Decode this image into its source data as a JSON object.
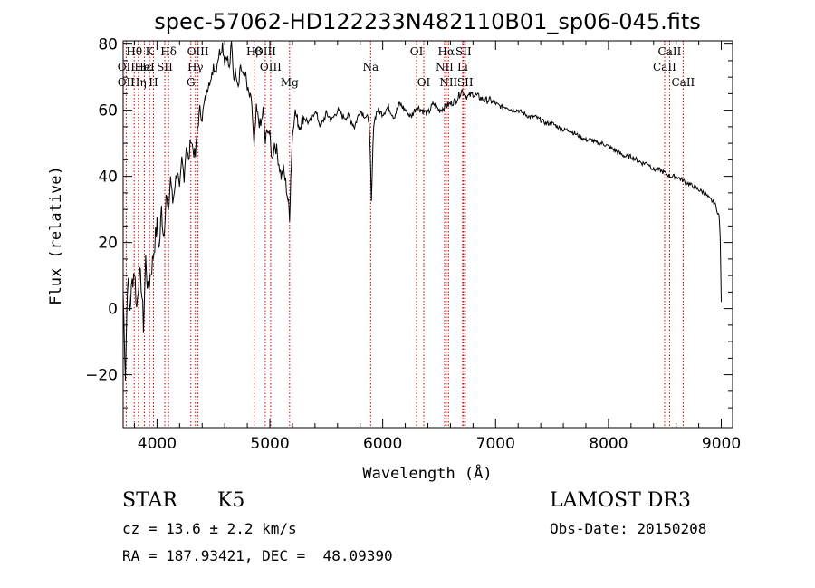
{
  "chart_data": {
    "type": "line",
    "title": "spec-57062-HD122233N482110B01_sp06-045.fits",
    "xlabel": "Wavelength (Å)",
    "ylabel": "Flux (relative)",
    "xlim": [
      3700,
      9100
    ],
    "ylim": [
      -36,
      81
    ],
    "xticks": [
      4000,
      5000,
      6000,
      7000,
      8000,
      9000
    ],
    "yticks": [
      -20,
      0,
      20,
      40,
      60,
      80
    ],
    "grid": false,
    "series": [
      {
        "x": [
          3700,
          3720,
          3740,
          3760,
          3780,
          3800,
          3820,
          3840,
          3860,
          3880,
          3900,
          3920,
          3940,
          3960,
          3980,
          4000,
          4020,
          4040,
          4060,
          4080,
          4100,
          4120,
          4140,
          4160,
          4180,
          4200,
          4220,
          4240,
          4260,
          4280,
          4300,
          4320,
          4340,
          4360,
          4380,
          4400,
          4420,
          4440,
          4460,
          4480,
          4500,
          4520,
          4540,
          4560,
          4580,
          4600,
          4620,
          4640,
          4660,
          4680,
          4700,
          4720,
          4740,
          4760,
          4780,
          4800,
          4820,
          4840,
          4860,
          4880,
          4900,
          4920,
          4940,
          4960,
          4980,
          5000,
          5020,
          5040,
          5060,
          5080,
          5100,
          5120,
          5140,
          5160,
          5175,
          5185,
          5200,
          5220,
          5260,
          5300,
          5350,
          5400,
          5450,
          5500,
          5550,
          5600,
          5650,
          5700,
          5750,
          5800,
          5850,
          5880,
          5893,
          5900,
          5920,
          5950,
          6000,
          6050,
          6100,
          6150,
          6200,
          6250,
          6300,
          6350,
          6400,
          6450,
          6500,
          6550,
          6600,
          6650,
          6700,
          6750,
          6800,
          6850,
          6900,
          6950,
          7000,
          7050,
          7100,
          7150,
          7200,
          7250,
          7300,
          7350,
          7400,
          7450,
          7500,
          7550,
          7600,
          7650,
          7700,
          7750,
          7800,
          7850,
          7900,
          7950,
          8000,
          8050,
          8100,
          8150,
          8200,
          8250,
          8300,
          8350,
          8400,
          8450,
          8500,
          8550,
          8600,
          8650,
          8700,
          8750,
          8800,
          8850,
          8900,
          8940,
          8960,
          8980,
          8990,
          9000
        ],
        "values": [
          5,
          -20,
          10,
          0,
          8,
          12,
          0,
          10,
          8,
          -5,
          15,
          5,
          10,
          14,
          20,
          25,
          18,
          30,
          22,
          35,
          28,
          40,
          32,
          38,
          42,
          35,
          45,
          40,
          50,
          44,
          52,
          48,
          46,
          55,
          60,
          58,
          62,
          65,
          70,
          68,
          74,
          72,
          76,
          78,
          80,
          75,
          77,
          72,
          80,
          70,
          72,
          68,
          74,
          70,
          72,
          66,
          64,
          62,
          48,
          60,
          57,
          55,
          60,
          50,
          55,
          52,
          45,
          50,
          48,
          44,
          40,
          42,
          38,
          33,
          28,
          40,
          52,
          60,
          55,
          58,
          56,
          60,
          55,
          59,
          57,
          60,
          58,
          58,
          55,
          60,
          58,
          57,
          42,
          32,
          56,
          60,
          59,
          61,
          58,
          62,
          60,
          58,
          61,
          60,
          59,
          62,
          60,
          61,
          62,
          63,
          66,
          64,
          65,
          64,
          63,
          63,
          62,
          61,
          61,
          60,
          60,
          59,
          58,
          58,
          57,
          56,
          56,
          55,
          54,
          54,
          53,
          52,
          51,
          51,
          50,
          50,
          49,
          48,
          47,
          46,
          46,
          45,
          44,
          44,
          42,
          42,
          41,
          40,
          40,
          39,
          38,
          37,
          36,
          35,
          33,
          32,
          30,
          28,
          22,
          2
        ]
      }
    ],
    "spectral_lines": [
      {
        "name": "Hθ",
        "wave": 3798,
        "row": 0
      },
      {
        "name": "OII",
        "wave": 3727,
        "row": 1
      },
      {
        "name": "OII",
        "wave": 3727,
        "row": 2
      },
      {
        "name": "Hε",
        "wave": 3889,
        "row": 1
      },
      {
        "name": "Hη",
        "wave": 3835,
        "row": 2
      },
      {
        "name": "K",
        "wave": 3934,
        "row": 0
      },
      {
        "name": "H",
        "wave": 3969,
        "row": 2
      },
      {
        "name": "HeI",
        "wave": 3889,
        "row": 1
      },
      {
        "name": "SII",
        "wave": 4069,
        "row": 1
      },
      {
        "name": "Hδ",
        "wave": 4102,
        "row": 0
      },
      {
        "name": "OIII",
        "wave": 4363,
        "row": 0
      },
      {
        "name": "Hγ",
        "wave": 4340,
        "row": 1
      },
      {
        "name": "G",
        "wave": 4300,
        "row": 2
      },
      {
        "name": "Hβ",
        "wave": 4861,
        "row": 0
      },
      {
        "name": "OIII",
        "wave": 4959,
        "row": 0
      },
      {
        "name": "OIII",
        "wave": 5007,
        "row": 1
      },
      {
        "name": "Mg",
        "wave": 5175,
        "row": 2
      },
      {
        "name": "Na",
        "wave": 5893,
        "row": 1
      },
      {
        "name": "OI",
        "wave": 6300,
        "row": 0
      },
      {
        "name": "OI",
        "wave": 6364,
        "row": 2
      },
      {
        "name": "Hα",
        "wave": 6563,
        "row": 0
      },
      {
        "name": "NII",
        "wave": 6548,
        "row": 1
      },
      {
        "name": "NII",
        "wave": 6583,
        "row": 2
      },
      {
        "name": "SII",
        "wave": 6716,
        "row": 0
      },
      {
        "name": "Li",
        "wave": 6708,
        "row": 1
      },
      {
        "name": "SII",
        "wave": 6731,
        "row": 2
      },
      {
        "name": "CaII",
        "wave": 8542,
        "row": 0
      },
      {
        "name": "CaII",
        "wave": 8498,
        "row": 1
      },
      {
        "name": "CaII",
        "wave": 8662,
        "row": 2
      }
    ],
    "line_marker_color": "#cc0000"
  },
  "info": {
    "object_class": "STAR",
    "subclass": "K5",
    "survey": "LAMOST DR3",
    "redshift": "cz = 13.6 ± 2.2 km/s",
    "obs_date": "Obs-Date: 20150208",
    "coords": "RA = 187.93421, DEC =  48.09390"
  }
}
